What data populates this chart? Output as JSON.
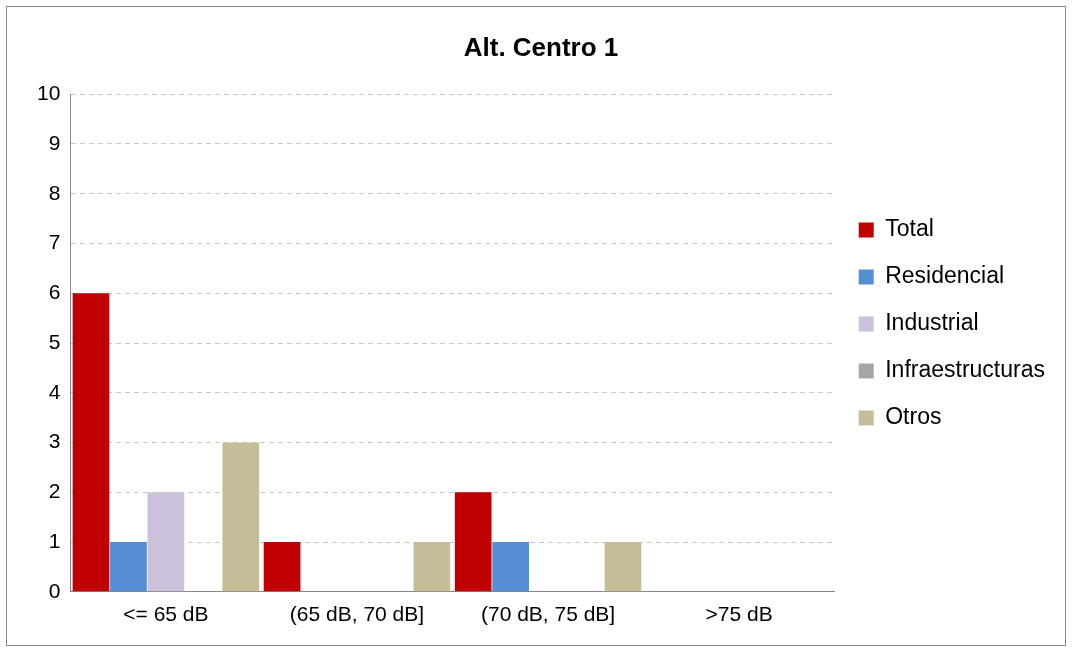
{
  "chart_data": {
    "type": "bar",
    "title": "Alt. Centro 1",
    "categories": [
      "<= 65 dB",
      "(65 dB, 70 dB]",
      "(70 dB, 75 dB]",
      ">75 dB"
    ],
    "series": [
      {
        "name": "Total",
        "color": "#c00000",
        "values": [
          6,
          1,
          2,
          0
        ]
      },
      {
        "name": "Residencial",
        "color": "#558ed5",
        "values": [
          1,
          0,
          1,
          0
        ]
      },
      {
        "name": "Industrial",
        "color": "#ccc1da",
        "values": [
          2,
          0,
          0,
          0
        ]
      },
      {
        "name": "Infraestructuras",
        "color": "#a6a6a6",
        "values": [
          0,
          0,
          0,
          0
        ]
      },
      {
        "name": "Otros",
        "color": "#c4bd97",
        "values": [
          3,
          1,
          1,
          0
        ]
      }
    ],
    "ylim": [
      0,
      10
    ],
    "yticks": [
      0,
      1,
      2,
      3,
      4,
      5,
      6,
      7,
      8,
      9,
      10
    ],
    "grid": "y",
    "legend": "right"
  }
}
